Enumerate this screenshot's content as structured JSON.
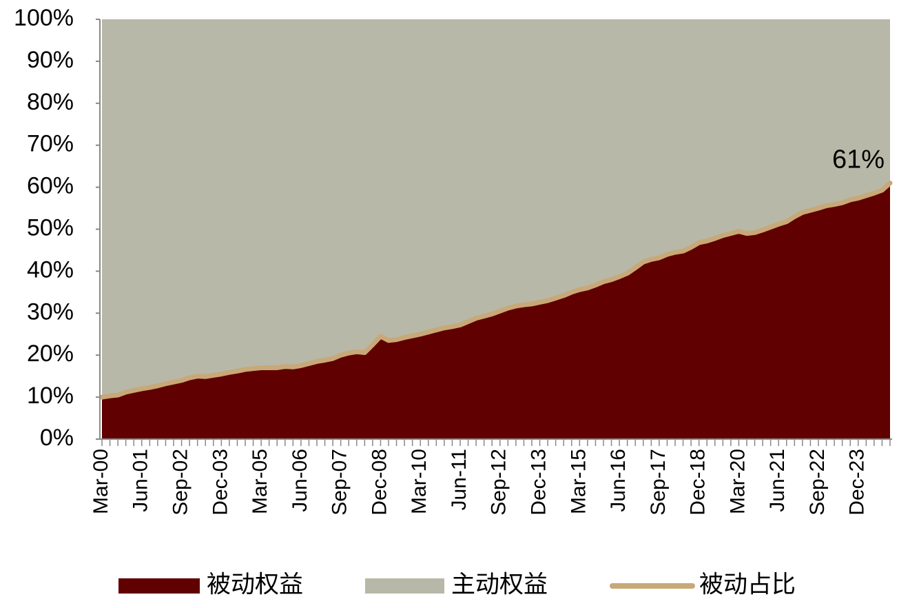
{
  "chart_data": {
    "type": "stacked-area-line",
    "categories": [
      "Mar-00",
      null,
      null,
      null,
      null,
      "Jun-01",
      null,
      null,
      null,
      null,
      "Sep-02",
      null,
      null,
      null,
      null,
      "Dec-03",
      null,
      null,
      null,
      null,
      "Mar-05",
      null,
      null,
      null,
      null,
      "Jun-06",
      null,
      null,
      null,
      null,
      "Sep-07",
      null,
      null,
      null,
      null,
      "Dec-08",
      null,
      null,
      null,
      null,
      "Mar-10",
      null,
      null,
      null,
      null,
      "Jun-11",
      null,
      null,
      null,
      null,
      "Sep-12",
      null,
      null,
      null,
      null,
      "Dec-13",
      null,
      null,
      null,
      null,
      "Mar-15",
      null,
      null,
      null,
      null,
      "Jun-16",
      null,
      null,
      null,
      null,
      "Sep-17",
      null,
      null,
      null,
      null,
      "Dec-18",
      null,
      null,
      null,
      null,
      "Mar-20",
      null,
      null,
      null,
      null,
      "Jun-21",
      null,
      null,
      null,
      null,
      "Sep-22",
      null,
      null,
      null,
      null,
      "Dec-23",
      null,
      null,
      null,
      null
    ],
    "series": [
      {
        "name": "被动权益",
        "kind": "area",
        "color": "#600000",
        "values": [
          10,
          10.3,
          10.5,
          11.2,
          11.6,
          12,
          12.3,
          12.7,
          13.2,
          13.6,
          14,
          14.6,
          15,
          14.9,
          15.2,
          15.5,
          15.9,
          16.2,
          16.6,
          16.8,
          17,
          17,
          17,
          17.3,
          17.2,
          17.5,
          18,
          18.5,
          18.8,
          19.2,
          20,
          20.5,
          20.8,
          20.6,
          22.5,
          24.5,
          23.5,
          23.7,
          24.2,
          24.6,
          25,
          25.5,
          26,
          26.5,
          26.8,
          27.2,
          28,
          28.8,
          29.3,
          29.8,
          30.5,
          31.2,
          31.7,
          32,
          32.2,
          32.6,
          33,
          33.6,
          34.2,
          35,
          35.6,
          36,
          36.7,
          37.5,
          38,
          38.7,
          39.5,
          40.8,
          42.2,
          42.8,
          43.2,
          44,
          44.5,
          44.8,
          45.7,
          46.8,
          47.2,
          47.8,
          48.5,
          49,
          49.5,
          49,
          49.2,
          49.8,
          50.5,
          51.2,
          51.8,
          53,
          54,
          54.5,
          55,
          55.6,
          55.9,
          56.3,
          57,
          57.4,
          58,
          58.6,
          59.3,
          61
        ]
      },
      {
        "name": "主动权益",
        "kind": "area",
        "color": "#b8b8a8",
        "values": [
          90,
          89.7,
          89.5,
          88.8,
          88.4,
          88,
          87.7,
          87.3,
          86.8,
          86.4,
          86,
          85.4,
          85,
          85.1,
          84.8,
          84.5,
          84.1,
          83.8,
          83.4,
          83.2,
          83,
          83,
          83,
          82.7,
          82.8,
          82.5,
          82,
          81.5,
          81.2,
          80.8,
          80,
          79.5,
          79.2,
          79.4,
          77.5,
          75.5,
          76.5,
          76.3,
          75.8,
          75.4,
          75,
          74.5,
          74,
          73.5,
          73.2,
          72.8,
          72,
          71.2,
          70.7,
          70.2,
          69.5,
          68.8,
          68.3,
          68,
          67.8,
          67.4,
          67,
          66.4,
          65.8,
          65,
          64.4,
          64,
          63.3,
          62.5,
          62,
          61.3,
          60.5,
          59.2,
          57.8,
          57.2,
          56.8,
          56,
          55.5,
          55.2,
          54.3,
          53.2,
          52.8,
          52.2,
          51.5,
          51,
          50.5,
          51,
          50.8,
          50.2,
          49.5,
          48.8,
          48.2,
          47,
          46,
          45.5,
          45,
          44.4,
          44.1,
          43.7,
          43,
          42.6,
          42,
          41.4,
          40.7,
          39
        ]
      },
      {
        "name": "被动占比",
        "kind": "line",
        "color": "#c8a878",
        "values": [
          10,
          10.3,
          10.5,
          11.2,
          11.6,
          12,
          12.3,
          12.7,
          13.2,
          13.6,
          14,
          14.6,
          15,
          14.9,
          15.2,
          15.5,
          15.9,
          16.2,
          16.6,
          16.8,
          17,
          17,
          17,
          17.3,
          17.2,
          17.5,
          18,
          18.5,
          18.8,
          19.2,
          20,
          20.5,
          20.8,
          20.6,
          22.5,
          24.5,
          23.5,
          23.7,
          24.2,
          24.6,
          25,
          25.5,
          26,
          26.5,
          26.8,
          27.2,
          28,
          28.8,
          29.3,
          29.8,
          30.5,
          31.2,
          31.7,
          32,
          32.2,
          32.6,
          33,
          33.6,
          34.2,
          35,
          35.6,
          36,
          36.7,
          37.5,
          38,
          38.7,
          39.5,
          40.8,
          42.2,
          42.8,
          43.2,
          44,
          44.5,
          44.8,
          45.7,
          46.8,
          47.2,
          47.8,
          48.5,
          49,
          49.5,
          49,
          49.2,
          49.8,
          50.5,
          51.2,
          51.8,
          53,
          54,
          54.5,
          55,
          55.6,
          55.9,
          56.3,
          57,
          57.4,
          58,
          58.6,
          59.3,
          61
        ],
        "annotation": "61%"
      }
    ],
    "ylim": [
      0,
      100
    ],
    "yticks": [
      {
        "value": 0,
        "label": "0%"
      },
      {
        "value": 10,
        "label": "10%"
      },
      {
        "value": 20,
        "label": "20%"
      },
      {
        "value": 30,
        "label": "30%"
      },
      {
        "value": 40,
        "label": "40%"
      },
      {
        "value": 50,
        "label": "50%"
      },
      {
        "value": 60,
        "label": "60%"
      },
      {
        "value": 70,
        "label": "70%"
      },
      {
        "value": 80,
        "label": "80%"
      },
      {
        "value": 90,
        "label": "90%"
      },
      {
        "value": 100,
        "label": "100%"
      }
    ],
    "grid": false
  }
}
